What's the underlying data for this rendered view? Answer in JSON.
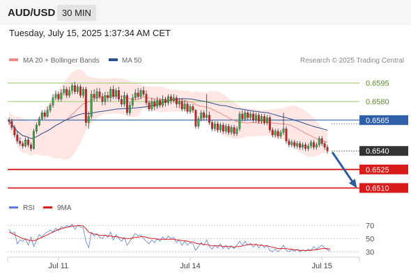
{
  "header": {
    "symbol": "AUD/USD",
    "timeframe": "30 MIN",
    "datetime": "Tuesday, July 15, 2025 1:37:34 AM CET"
  },
  "legend": {
    "ma20": "MA 20 + Bollinger Bands",
    "ma50": "MA 50",
    "credit": "Research © 2025 Trading Central",
    "rsi": "RSI",
    "rsi_ma": "9MA"
  },
  "colors": {
    "candle_up": "#39a545",
    "candle_down": "#c42424",
    "bollinger_fill": "#fde2de",
    "ma20": "#f08a82",
    "ma50": "#2c4f8f",
    "green_level": "#9ccc6a",
    "blue_level": "#2f5fa8",
    "red_level": "#d81c1c",
    "price_tag": "#333333",
    "arrow": "#2e5b9c",
    "rsi_line": "#5b7fd6",
    "rsi_ma_line": "#d81c1c"
  },
  "chart_data": [
    {
      "type": "candlestick",
      "ylim": [
        0.6499,
        0.6606
      ],
      "x_ticks": [
        {
          "label": "Jul 11",
          "index": 18
        },
        {
          "label": "Jul 14",
          "index": 66
        },
        {
          "label": "Jul 15",
          "index": 114
        }
      ],
      "levels": [
        {
          "value": 0.6595,
          "label": "0.6595",
          "kind": "resistance-green"
        },
        {
          "value": 0.658,
          "label": "0.6580",
          "kind": "resistance-green"
        },
        {
          "value": 0.6565,
          "label": "0.6565",
          "kind": "pivot-blue"
        },
        {
          "value": 0.654,
          "label": "0.6540",
          "kind": "last-price"
        },
        {
          "value": 0.6525,
          "label": "0.6525",
          "kind": "support-red"
        },
        {
          "value": 0.651,
          "label": "0.6510",
          "kind": "support-red"
        }
      ],
      "forecast_arrow": {
        "from": 0.6539,
        "to": 0.6511
      },
      "candles": [
        [
          0.6565,
          0.6564,
          0.6567,
          0.6561
        ],
        [
          0.6564,
          0.6559,
          0.6566,
          0.6557
        ],
        [
          0.6559,
          0.6553,
          0.6561,
          0.6551
        ],
        [
          0.6553,
          0.6548,
          0.6556,
          0.6546
        ],
        [
          0.6548,
          0.6546,
          0.6551,
          0.6544
        ],
        [
          0.6546,
          0.6544,
          0.6548,
          0.6542
        ],
        [
          0.6544,
          0.6549,
          0.6551,
          0.6543
        ],
        [
          0.6549,
          0.6545,
          0.6551,
          0.6543
        ],
        [
          0.6545,
          0.6542,
          0.6547,
          0.654
        ],
        [
          0.6542,
          0.6556,
          0.6558,
          0.6541
        ],
        [
          0.6556,
          0.6561,
          0.6563,
          0.6554
        ],
        [
          0.6561,
          0.6566,
          0.6568,
          0.656
        ],
        [
          0.6566,
          0.6571,
          0.6573,
          0.6565
        ],
        [
          0.6571,
          0.6568,
          0.6573,
          0.6566
        ],
        [
          0.6568,
          0.6573,
          0.6576,
          0.6567
        ],
        [
          0.6573,
          0.6577,
          0.6579,
          0.6571
        ],
        [
          0.6577,
          0.6583,
          0.6586,
          0.6575
        ],
        [
          0.6583,
          0.6586,
          0.6589,
          0.6581
        ],
        [
          0.6586,
          0.6582,
          0.6588,
          0.658
        ],
        [
          0.6582,
          0.6587,
          0.659,
          0.658
        ],
        [
          0.6587,
          0.659,
          0.6593,
          0.6585
        ],
        [
          0.659,
          0.6585,
          0.6592,
          0.6583
        ],
        [
          0.6585,
          0.6589,
          0.6592,
          0.6583
        ],
        [
          0.6589,
          0.6593,
          0.6595,
          0.6586
        ],
        [
          0.6593,
          0.6588,
          0.6596,
          0.6586
        ],
        [
          0.6588,
          0.6592,
          0.6594,
          0.6586
        ],
        [
          0.6592,
          0.6585,
          0.6594,
          0.6583
        ],
        [
          0.6585,
          0.659,
          0.6592,
          0.6583
        ],
        [
          0.659,
          0.6563,
          0.6592,
          0.656
        ],
        [
          0.6563,
          0.6568,
          0.6572,
          0.6558
        ],
        [
          0.6568,
          0.6586,
          0.6589,
          0.6566
        ],
        [
          0.6586,
          0.6583,
          0.659,
          0.658
        ],
        [
          0.6583,
          0.6588,
          0.6591,
          0.658
        ],
        [
          0.6588,
          0.6584,
          0.6591,
          0.6582
        ],
        [
          0.6584,
          0.658,
          0.6587,
          0.6577
        ],
        [
          0.658,
          0.6585,
          0.6588,
          0.6577
        ],
        [
          0.6585,
          0.6583,
          0.6588,
          0.658
        ],
        [
          0.6583,
          0.659,
          0.6592,
          0.658
        ],
        [
          0.659,
          0.6584,
          0.6593,
          0.6582
        ],
        [
          0.6584,
          0.6589,
          0.6591,
          0.6582
        ],
        [
          0.6589,
          0.6582,
          0.6592,
          0.658
        ],
        [
          0.6582,
          0.6578,
          0.6585,
          0.6576
        ],
        [
          0.6578,
          0.6585,
          0.6588,
          0.6576
        ],
        [
          0.6585,
          0.6571,
          0.6587,
          0.6569
        ],
        [
          0.6571,
          0.6577,
          0.658,
          0.6569
        ],
        [
          0.6577,
          0.6583,
          0.6586,
          0.6575
        ],
        [
          0.6583,
          0.6587,
          0.659,
          0.6581
        ],
        [
          0.6587,
          0.6584,
          0.6591,
          0.6582
        ],
        [
          0.6584,
          0.6589,
          0.6591,
          0.6582
        ],
        [
          0.6589,
          0.6586,
          0.6592,
          0.6584
        ],
        [
          0.6586,
          0.6579,
          0.6589,
          0.6577
        ],
        [
          0.6579,
          0.6574,
          0.6581,
          0.6572
        ],
        [
          0.6574,
          0.658,
          0.6583,
          0.6572
        ],
        [
          0.658,
          0.6576,
          0.6582,
          0.6573
        ],
        [
          0.6576,
          0.6581,
          0.6584,
          0.6574
        ],
        [
          0.6581,
          0.6577,
          0.6583,
          0.6575
        ],
        [
          0.6577,
          0.6582,
          0.6585,
          0.6575
        ],
        [
          0.6582,
          0.6579,
          0.6584,
          0.6576
        ],
        [
          0.6579,
          0.6584,
          0.6586,
          0.6577
        ],
        [
          0.6584,
          0.6581,
          0.6586,
          0.6578
        ],
        [
          0.6581,
          0.6583,
          0.6586,
          0.6579
        ],
        [
          0.6583,
          0.6578,
          0.6585,
          0.6575
        ],
        [
          0.6578,
          0.658,
          0.6583,
          0.6575
        ],
        [
          0.658,
          0.6574,
          0.6583,
          0.6572
        ],
        [
          0.6574,
          0.6578,
          0.6581,
          0.6572
        ],
        [
          0.6578,
          0.6572,
          0.658,
          0.657
        ],
        [
          0.6572,
          0.6576,
          0.6578,
          0.657
        ],
        [
          0.6576,
          0.6573,
          0.6578,
          0.6571
        ],
        [
          0.6573,
          0.656,
          0.6574,
          0.6558
        ],
        [
          0.656,
          0.6566,
          0.6568,
          0.6558
        ],
        [
          0.6566,
          0.6571,
          0.6573,
          0.6564
        ],
        [
          0.6571,
          0.6567,
          0.6573,
          0.6565
        ],
        [
          0.6567,
          0.6569,
          0.6586,
          0.6565
        ],
        [
          0.6569,
          0.6563,
          0.6572,
          0.6561
        ],
        [
          0.6563,
          0.6558,
          0.6565,
          0.6556
        ],
        [
          0.6558,
          0.6562,
          0.6564,
          0.6556
        ],
        [
          0.6562,
          0.6557,
          0.6564,
          0.6555
        ],
        [
          0.6557,
          0.6561,
          0.6563,
          0.6555
        ],
        [
          0.6561,
          0.6556,
          0.6563,
          0.6554
        ],
        [
          0.6556,
          0.656,
          0.6562,
          0.6554
        ],
        [
          0.656,
          0.6555,
          0.6562,
          0.6553
        ],
        [
          0.6555,
          0.6559,
          0.6561,
          0.6553
        ],
        [
          0.6559,
          0.6554,
          0.6561,
          0.6552
        ],
        [
          0.6554,
          0.6558,
          0.656,
          0.6552
        ],
        [
          0.6558,
          0.657,
          0.6572,
          0.6556
        ],
        [
          0.657,
          0.6566,
          0.6573,
          0.6564
        ],
        [
          0.6566,
          0.6571,
          0.6573,
          0.6564
        ],
        [
          0.6571,
          0.6567,
          0.6573,
          0.6565
        ],
        [
          0.6567,
          0.657,
          0.6572,
          0.6565
        ],
        [
          0.657,
          0.6565,
          0.6572,
          0.6563
        ],
        [
          0.6565,
          0.6569,
          0.6571,
          0.6563
        ],
        [
          0.6569,
          0.6564,
          0.6571,
          0.6562
        ],
        [
          0.6564,
          0.6568,
          0.657,
          0.6562
        ],
        [
          0.6568,
          0.6563,
          0.657,
          0.6561
        ],
        [
          0.6563,
          0.6567,
          0.6569,
          0.6561
        ],
        [
          0.6567,
          0.6557,
          0.6569,
          0.6555
        ],
        [
          0.6557,
          0.6553,
          0.6559,
          0.6551
        ],
        [
          0.6553,
          0.6556,
          0.6558,
          0.6551
        ],
        [
          0.6556,
          0.6552,
          0.6558,
          0.655
        ],
        [
          0.6552,
          0.6555,
          0.6557,
          0.655
        ],
        [
          0.6555,
          0.6558,
          0.6571,
          0.6553
        ],
        [
          0.6558,
          0.6548,
          0.656,
          0.6546
        ],
        [
          0.6548,
          0.6545,
          0.655,
          0.6543
        ],
        [
          0.6545,
          0.6547,
          0.6549,
          0.6543
        ],
        [
          0.6547,
          0.6544,
          0.6549,
          0.6542
        ],
        [
          0.6544,
          0.6546,
          0.6548,
          0.6542
        ],
        [
          0.6546,
          0.6543,
          0.6548,
          0.6541
        ],
        [
          0.6543,
          0.6545,
          0.6547,
          0.6541
        ],
        [
          0.6545,
          0.6542,
          0.6547,
          0.654
        ],
        [
          0.6542,
          0.6544,
          0.6546,
          0.654
        ],
        [
          0.6544,
          0.6547,
          0.6549,
          0.6542
        ],
        [
          0.6547,
          0.6543,
          0.6549,
          0.6541
        ],
        [
          0.6543,
          0.6545,
          0.6547,
          0.6541
        ],
        [
          0.6545,
          0.655,
          0.6552,
          0.6543
        ],
        [
          0.655,
          0.6546,
          0.6552,
          0.6544
        ],
        [
          0.6546,
          0.6543,
          0.6548,
          0.6541
        ],
        [
          0.6543,
          0.654,
          0.6545,
          0.6538
        ]
      ]
    },
    {
      "type": "line",
      "ylim": [
        24,
        82
      ],
      "levels": [
        {
          "value": 70,
          "label": "70"
        },
        {
          "value": 50,
          "label": "50"
        },
        {
          "value": 30,
          "label": "30"
        }
      ],
      "series": [
        {
          "name": "RSI",
          "values": [
            64,
            58,
            60,
            42,
            48,
            46,
            50,
            40,
            52,
            38,
            47,
            56,
            52,
            58,
            60,
            63,
            60,
            66,
            62,
            68,
            66,
            70,
            68,
            72,
            64,
            70,
            68,
            66,
            46,
            36,
            60,
            54,
            58,
            52,
            50,
            56,
            52,
            60,
            48,
            56,
            50,
            46,
            52,
            40,
            46,
            52,
            58,
            54,
            56,
            50,
            46,
            42,
            48,
            44,
            50,
            46,
            52,
            48,
            54,
            50,
            52,
            44,
            48,
            40,
            46,
            40,
            44,
            42,
            32,
            38,
            44,
            40,
            48,
            38,
            34,
            40,
            36,
            42,
            35,
            40,
            34,
            39,
            35,
            40,
            46,
            40,
            46,
            40,
            43,
            37,
            42,
            36,
            41,
            36,
            40,
            32,
            30,
            34,
            30,
            34,
            40,
            32,
            30,
            33,
            31,
            34,
            30,
            33,
            31,
            34,
            32,
            38,
            34,
            37,
            40,
            36,
            33,
            31
          ]
        },
        {
          "name": "9MA",
          "values": [
            60,
            58,
            56,
            54,
            52,
            50,
            49,
            48,
            47,
            47,
            48,
            50,
            52,
            54,
            56,
            58,
            60,
            62,
            64,
            65,
            66,
            67,
            68,
            69,
            69,
            70,
            70,
            69,
            65,
            60,
            58,
            57,
            56,
            55,
            55,
            55,
            54,
            54,
            53,
            53,
            52,
            51,
            50,
            50,
            50,
            51,
            52,
            52,
            53,
            53,
            52,
            51,
            50,
            50,
            49,
            49,
            49,
            49,
            49,
            49,
            49,
            48,
            48,
            47,
            47,
            46,
            45,
            45,
            43,
            42,
            42,
            41,
            41,
            40,
            39,
            39,
            39,
            39,
            38,
            38,
            38,
            38,
            37,
            38,
            38,
            39,
            40,
            41,
            41,
            41,
            41,
            40,
            40,
            39,
            39,
            38,
            37,
            36,
            35,
            35,
            35,
            35,
            34,
            34,
            33,
            33,
            32,
            32,
            32,
            32,
            32,
            33,
            33,
            34,
            35,
            35,
            35,
            34
          ]
        }
      ]
    }
  ]
}
